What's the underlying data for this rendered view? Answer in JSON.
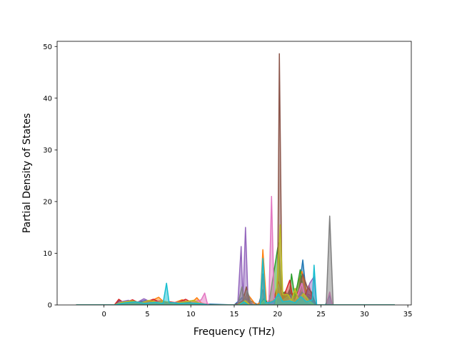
{
  "chart_data": {
    "type": "area",
    "title": "",
    "xlabel": "Frequency (THz)",
    "ylabel": "Partial Density of States",
    "xlim": [
      -5.4,
      35.4
    ],
    "ylim": [
      0,
      51
    ],
    "xticks": [
      0,
      5,
      10,
      15,
      20,
      25,
      30,
      35
    ],
    "yticks": [
      0,
      10,
      20,
      30,
      40,
      50
    ],
    "grid": false,
    "legend": "none",
    "series": [
      {
        "color": "#1f77b4",
        "points": [
          [
            -3.2,
            0
          ],
          [
            1.2,
            0
          ],
          [
            1.8,
            0.9
          ],
          [
            2.4,
            0.3
          ],
          [
            3.0,
            0.8
          ],
          [
            3.5,
            0.4
          ],
          [
            4.8,
            0.9
          ],
          [
            5.6,
            0.5
          ],
          [
            6.5,
            0.8
          ],
          [
            7.4,
            0.3
          ],
          [
            9.2,
            0.6
          ],
          [
            10.5,
            0.4
          ],
          [
            11.5,
            0.2
          ],
          [
            15.0,
            0
          ],
          [
            15.9,
            1.4
          ],
          [
            16.2,
            0.5
          ],
          [
            16.4,
            1.2
          ],
          [
            17.8,
            0
          ],
          [
            18.3,
            3.0
          ],
          [
            18.6,
            0.4
          ],
          [
            19.2,
            0.5
          ],
          [
            19.6,
            0.8
          ],
          [
            20.1,
            2.4
          ],
          [
            20.6,
            1.8
          ],
          [
            21.5,
            2.2
          ],
          [
            22.3,
            1.0
          ],
          [
            22.9,
            8.7
          ],
          [
            23.3,
            2.2
          ],
          [
            23.9,
            1.8
          ],
          [
            24.5,
            0
          ],
          [
            25.5,
            0
          ],
          [
            26.0,
            1.8
          ],
          [
            26.3,
            0
          ],
          [
            33.5,
            0
          ]
        ]
      },
      {
        "color": "#ff7f0e",
        "points": [
          [
            -3.2,
            0
          ],
          [
            1.2,
            0
          ],
          [
            2.0,
            0.4
          ],
          [
            3.1,
            0.6
          ],
          [
            4.2,
            0.3
          ],
          [
            5.3,
            0.7
          ],
          [
            6.3,
            1.5
          ],
          [
            7.0,
            0.4
          ],
          [
            8.2,
            0.5
          ],
          [
            9.0,
            1.0
          ],
          [
            10.0,
            0.3
          ],
          [
            10.7,
            1.4
          ],
          [
            11.2,
            0.4
          ],
          [
            12.0,
            0
          ],
          [
            15.2,
            0
          ],
          [
            16.0,
            0.6
          ],
          [
            16.5,
            2.2
          ],
          [
            17.5,
            0
          ],
          [
            18.0,
            0.5
          ],
          [
            18.3,
            10.7
          ],
          [
            18.7,
            0.5
          ],
          [
            19.5,
            0.8
          ],
          [
            20.0,
            3.8
          ],
          [
            20.5,
            1.4
          ],
          [
            21.3,
            1.8
          ],
          [
            22.0,
            2.4
          ],
          [
            22.8,
            6.5
          ],
          [
            23.4,
            1.6
          ],
          [
            24.2,
            0
          ],
          [
            26.0,
            0
          ],
          [
            33.5,
            0
          ]
        ]
      },
      {
        "color": "#2ca02c",
        "points": [
          [
            -3.2,
            0
          ],
          [
            1.2,
            0
          ],
          [
            1.9,
            0.5
          ],
          [
            2.9,
            0.4
          ],
          [
            4.0,
            0.6
          ],
          [
            5.1,
            0.4
          ],
          [
            6.0,
            0.6
          ],
          [
            7.2,
            0.3
          ],
          [
            8.6,
            0.4
          ],
          [
            9.6,
            0.5
          ],
          [
            11.0,
            0.3
          ],
          [
            12.0,
            0
          ],
          [
            15.2,
            0
          ],
          [
            16.1,
            0.8
          ],
          [
            16.8,
            0
          ],
          [
            18.0,
            0
          ],
          [
            18.4,
            1.2
          ],
          [
            19.0,
            0.3
          ],
          [
            20.1,
            12.0
          ],
          [
            20.4,
            2.0
          ],
          [
            20.9,
            2.6
          ],
          [
            21.3,
            0.8
          ],
          [
            21.6,
            6.0
          ],
          [
            22.0,
            1.4
          ],
          [
            22.6,
            6.8
          ],
          [
            23.0,
            2.0
          ],
          [
            23.6,
            1.5
          ],
          [
            24.3,
            0
          ],
          [
            26.0,
            0
          ],
          [
            33.5,
            0
          ]
        ]
      },
      {
        "color": "#d62728",
        "points": [
          [
            -3.2,
            0
          ],
          [
            1.2,
            0
          ],
          [
            1.7,
            1.1
          ],
          [
            2.3,
            0.4
          ],
          [
            3.3,
            1.0
          ],
          [
            4.0,
            0.4
          ],
          [
            4.8,
            0.6
          ],
          [
            5.7,
            1.1
          ],
          [
            6.6,
            0.4
          ],
          [
            7.6,
            0.6
          ],
          [
            8.4,
            0.4
          ],
          [
            9.4,
            1.1
          ],
          [
            10.2,
            0.4
          ],
          [
            11.0,
            0.2
          ],
          [
            12.0,
            0
          ],
          [
            15.0,
            0
          ],
          [
            15.8,
            0.5
          ],
          [
            16.5,
            0
          ],
          [
            18.0,
            0
          ],
          [
            19.0,
            0
          ],
          [
            19.6,
            0.6
          ],
          [
            20.1,
            4.5
          ],
          [
            20.6,
            1.2
          ],
          [
            21.4,
            4.8
          ],
          [
            21.8,
            0.8
          ],
          [
            22.5,
            3.0
          ],
          [
            23.0,
            1.2
          ],
          [
            23.6,
            3.8
          ],
          [
            24.2,
            0
          ],
          [
            26.0,
            0
          ],
          [
            33.5,
            0
          ]
        ]
      },
      {
        "color": "#9467bd",
        "points": [
          [
            -3.2,
            0
          ],
          [
            1.2,
            0
          ],
          [
            1.9,
            0.6
          ],
          [
            2.8,
            0.9
          ],
          [
            3.7,
            0.4
          ],
          [
            4.6,
            1.2
          ],
          [
            5.5,
            0.5
          ],
          [
            6.4,
            0.7
          ],
          [
            7.3,
            0.3
          ],
          [
            8.4,
            0.5
          ],
          [
            9.6,
            0.7
          ],
          [
            10.6,
            0.4
          ],
          [
            11.5,
            0.2
          ],
          [
            12.0,
            0
          ],
          [
            15.4,
            0
          ],
          [
            15.8,
            11.3
          ],
          [
            16.0,
            0.6
          ],
          [
            16.3,
            15.0
          ],
          [
            16.6,
            0.8
          ],
          [
            17.2,
            0
          ],
          [
            19.0,
            0
          ],
          [
            19.7,
            0.5
          ],
          [
            20.2,
            2.2
          ],
          [
            20.6,
            0.6
          ],
          [
            21.5,
            1.5
          ],
          [
            22.0,
            0.5
          ],
          [
            22.7,
            2.0
          ],
          [
            23.2,
            1.0
          ],
          [
            23.7,
            4.2
          ],
          [
            24.2,
            5.5
          ],
          [
            24.5,
            0
          ],
          [
            26.0,
            0
          ],
          [
            33.5,
            0
          ]
        ]
      },
      {
        "color": "#8c564b",
        "points": [
          [
            -3.2,
            0
          ],
          [
            1.2,
            0
          ],
          [
            2.2,
            0.5
          ],
          [
            3.4,
            0.7
          ],
          [
            4.5,
            0.3
          ],
          [
            5.4,
            0.6
          ],
          [
            6.2,
            0.3
          ],
          [
            7.8,
            0.4
          ],
          [
            8.8,
            0.3
          ],
          [
            10.0,
            0.5
          ],
          [
            11.0,
            0.2
          ],
          [
            12.0,
            0
          ],
          [
            15.2,
            0
          ],
          [
            16.0,
            0.8
          ],
          [
            16.4,
            3.5
          ],
          [
            16.8,
            0
          ],
          [
            19.6,
            0
          ],
          [
            20.0,
            2.0
          ],
          [
            20.2,
            48.6
          ],
          [
            20.5,
            3.0
          ],
          [
            20.9,
            1.2
          ],
          [
            21.4,
            3.0
          ],
          [
            21.8,
            1.0
          ],
          [
            22.4,
            2.5
          ],
          [
            22.9,
            6.0
          ],
          [
            23.4,
            3.5
          ],
          [
            23.9,
            2.5
          ],
          [
            24.4,
            0
          ],
          [
            26.0,
            0
          ],
          [
            33.5,
            0
          ]
        ]
      },
      {
        "color": "#e377c2",
        "points": [
          [
            -3.2,
            0
          ],
          [
            1.2,
            0
          ],
          [
            2.5,
            0.3
          ],
          [
            4.0,
            0.4
          ],
          [
            5.8,
            0.5
          ],
          [
            7.0,
            0.3
          ],
          [
            8.5,
            0.3
          ],
          [
            10.0,
            0.4
          ],
          [
            11.2,
            1.0
          ],
          [
            11.6,
            2.3
          ],
          [
            11.9,
            0.3
          ],
          [
            12.2,
            0
          ],
          [
            18.6,
            0
          ],
          [
            19.0,
            1.0
          ],
          [
            19.3,
            21.0
          ],
          [
            19.6,
            1.2
          ],
          [
            20.2,
            1.5
          ],
          [
            20.7,
            0.5
          ],
          [
            21.4,
            1.0
          ],
          [
            22.0,
            0.5
          ],
          [
            22.8,
            4.2
          ],
          [
            23.2,
            1.0
          ],
          [
            24.0,
            0
          ],
          [
            25.6,
            0
          ],
          [
            26.0,
            2.5
          ],
          [
            26.3,
            0
          ],
          [
            33.5,
            0
          ]
        ]
      },
      {
        "color": "#7f7f7f",
        "points": [
          [
            -3.2,
            0
          ],
          [
            1.2,
            0
          ],
          [
            3.0,
            0.3
          ],
          [
            5.0,
            0.4
          ],
          [
            7.0,
            0.3
          ],
          [
            9.0,
            0.3
          ],
          [
            11.0,
            0.2
          ],
          [
            12.0,
            0
          ],
          [
            15.4,
            0
          ],
          [
            15.9,
            3.5
          ],
          [
            16.2,
            0.4
          ],
          [
            16.5,
            2.8
          ],
          [
            17.0,
            0
          ],
          [
            18.0,
            0
          ],
          [
            18.3,
            6.0
          ],
          [
            18.6,
            0
          ],
          [
            19.6,
            0
          ],
          [
            20.1,
            4.0
          ],
          [
            20.5,
            0.8
          ],
          [
            21.5,
            2.0
          ],
          [
            22.0,
            0.6
          ],
          [
            22.8,
            2.5
          ],
          [
            23.4,
            1.5
          ],
          [
            24.3,
            0
          ],
          [
            25.6,
            0
          ],
          [
            26.0,
            17.2
          ],
          [
            26.4,
            0
          ],
          [
            33.5,
            0
          ]
        ]
      },
      {
        "color": "#bcbd22",
        "points": [
          [
            -3.2,
            0
          ],
          [
            1.2,
            0
          ],
          [
            2.0,
            0.5
          ],
          [
            3.2,
            0.8
          ],
          [
            4.3,
            0.4
          ],
          [
            5.2,
            0.9
          ],
          [
            6.1,
            0.5
          ],
          [
            7.0,
            0.7
          ],
          [
            8.0,
            0.3
          ],
          [
            9.2,
            0.6
          ],
          [
            10.3,
            0.9
          ],
          [
            11.0,
            0.3
          ],
          [
            12.0,
            0
          ],
          [
            15.4,
            0
          ],
          [
            16.3,
            0.8
          ],
          [
            16.8,
            0
          ],
          [
            18.0,
            0
          ],
          [
            18.4,
            0.8
          ],
          [
            18.8,
            0
          ],
          [
            19.8,
            0
          ],
          [
            20.3,
            15.5
          ],
          [
            20.6,
            2.0
          ],
          [
            21.2,
            2.0
          ],
          [
            21.6,
            0.8
          ],
          [
            22.0,
            3.2
          ],
          [
            22.4,
            1.0
          ],
          [
            23.0,
            2.2
          ],
          [
            23.6,
            0.8
          ],
          [
            24.2,
            0
          ],
          [
            26.0,
            0
          ],
          [
            33.5,
            0
          ]
        ]
      },
      {
        "color": "#17becf",
        "points": [
          [
            -3.2,
            0
          ],
          [
            1.2,
            0
          ],
          [
            2.4,
            0.4
          ],
          [
            3.6,
            0.6
          ],
          [
            4.7,
            0.3
          ],
          [
            5.9,
            0.5
          ],
          [
            6.8,
            0.3
          ],
          [
            7.2,
            4.2
          ],
          [
            7.5,
            0.5
          ],
          [
            8.6,
            0.3
          ],
          [
            9.8,
            0.4
          ],
          [
            10.9,
            0.3
          ],
          [
            12.0,
            0
          ],
          [
            15.6,
            0
          ],
          [
            16.1,
            0.6
          ],
          [
            16.6,
            0
          ],
          [
            18.0,
            0
          ],
          [
            18.3,
            9.0
          ],
          [
            18.6,
            0.4
          ],
          [
            19.2,
            0.5
          ],
          [
            19.6,
            0.8
          ],
          [
            20.1,
            2.2
          ],
          [
            20.6,
            0.6
          ],
          [
            21.4,
            0.8
          ],
          [
            22.0,
            0.4
          ],
          [
            22.7,
            1.6
          ],
          [
            23.3,
            0.6
          ],
          [
            24.0,
            1.0
          ],
          [
            24.2,
            7.7
          ],
          [
            24.5,
            0
          ],
          [
            26.0,
            0
          ],
          [
            33.5,
            0
          ]
        ]
      }
    ]
  }
}
